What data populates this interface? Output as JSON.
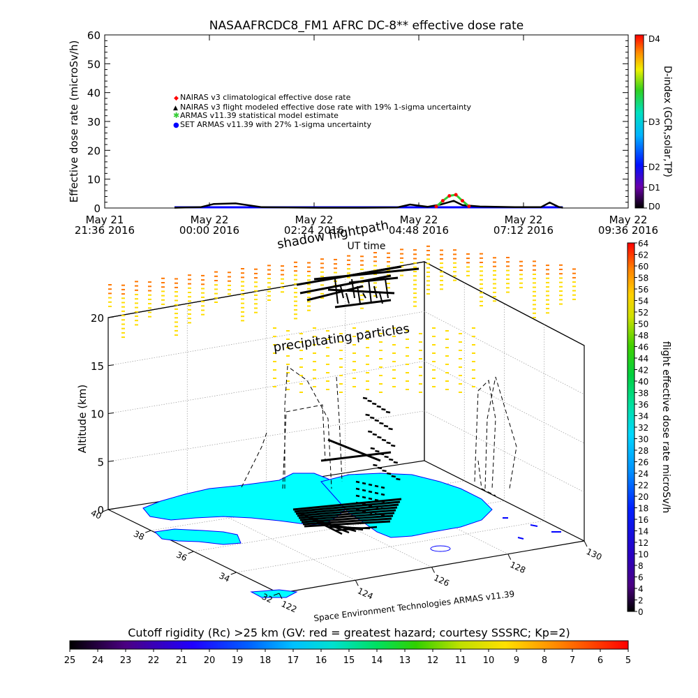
{
  "chart_data": [
    {
      "type": "line",
      "title": "NASAAFRCDC8_FM1 AFRC DC-8** effective dose rate",
      "xlabel": "UT time",
      "ylabel": "Effective dose rate (microSv/h)",
      "ylim": [
        0,
        60
      ],
      "y_ticks": [
        "0",
        "10",
        "20",
        "30",
        "40",
        "50",
        "60"
      ],
      "x_ticks": [
        {
          "line1": "May 21",
          "line2": "21:36 2016"
        },
        {
          "line1": "May 22",
          "line2": "00:00 2016"
        },
        {
          "line1": "May 22",
          "line2": "02:24 2016"
        },
        {
          "line1": "May 22",
          "line2": "04:48 2016"
        },
        {
          "line1": "May 22",
          "line2": "07:12 2016"
        },
        {
          "line1": "May 22",
          "line2": "09:36 2016"
        }
      ],
      "xlim_hours": [
        -2.4,
        9.6
      ],
      "legend": [
        {
          "label": "NAIRAS v3 climatological effective dose rate",
          "color": "#ff0000",
          "marker": "diamond"
        },
        {
          "label": "NAIRAS v3 flight modeled effective dose rate with 19% 1-sigma uncertainty",
          "color": "#000000",
          "marker": "triangle"
        },
        {
          "label": "ARMAS v11.39 statistical model estimate",
          "color": "#33cc33",
          "marker": "star"
        },
        {
          "label": "SET ARMAS v11.39 with 27% 1-sigma uncertainty",
          "color": "#0000ff",
          "marker": "circle"
        }
      ],
      "series": [
        {
          "name": "NAIRAS v3 flight modeled effective dose rate with 19% 1-sigma uncertainty",
          "x_hours": [
            -0.8,
            -0.2,
            0.1,
            0.6,
            1.2,
            1.8,
            2.5,
            3.5,
            4.3,
            4.6,
            5.0,
            5.3,
            5.6,
            5.8,
            6.2,
            7.0,
            7.6,
            7.8,
            8.0,
            8.1
          ],
          "values": [
            0.1,
            0.3,
            1.4,
            1.6,
            0.3,
            0.2,
            0.1,
            0.1,
            0.2,
            1.2,
            0.4,
            1.2,
            2.5,
            1.0,
            0.5,
            0.3,
            0.3,
            1.9,
            0.4,
            0.1
          ]
        },
        {
          "name": "ARMAS v11.39 statistical model estimate",
          "x_hours": [
            5.2,
            5.35,
            5.5,
            5.65,
            5.8,
            5.95
          ],
          "values": [
            0.5,
            2.5,
            4.2,
            4.6,
            2.5,
            0.6
          ]
        },
        {
          "name": "SET ARMAS v11.39 with 27% 1-sigma uncertainty",
          "x_hours": [
            -0.8,
            1.0,
            3.0,
            5.0,
            7.0,
            8.1
          ],
          "values": [
            0,
            0,
            0,
            0,
            0,
            0
          ]
        }
      ],
      "right_axis": {
        "label": "D-index (GCR,solar,TP)",
        "ticks": [
          "D0",
          "D1",
          "D2",
          "D3",
          "D4"
        ]
      }
    },
    {
      "type": "scatter",
      "variant": "3d",
      "title": "shadow flightpath",
      "annotation": "precipitating particles",
      "zlabel": "Altitude (km)",
      "z_ticks": [
        "0",
        "5",
        "10",
        "15",
        "20"
      ],
      "zlim": [
        0,
        20
      ],
      "lat_ticks": [
        "32",
        "34",
        "36",
        "38",
        "40"
      ],
      "lon_ticks": [
        "122",
        "124",
        "126",
        "128",
        "130"
      ],
      "footer": "Space Environment Technologies ARMAS v11.39",
      "right_colorbar": {
        "label": "flight effective dose rate microSv/h",
        "ticks": [
          "0",
          "2",
          "4",
          "6",
          "8",
          "10",
          "12",
          "14",
          "16",
          "18",
          "20",
          "22",
          "24",
          "26",
          "28",
          "30",
          "32",
          "34",
          "36",
          "38",
          "40",
          "42",
          "44",
          "46",
          "48",
          "50",
          "52",
          "54",
          "56",
          "58",
          "60",
          "62",
          "64"
        ]
      },
      "bottom_colorbar": {
        "label": "Cutoff rigidity (Rc) >25 km (GV: red = greatest hazard; courtesy SSSRC; Kp=2)",
        "ticks": [
          "25",
          "24",
          "23",
          "22",
          "21",
          "20",
          "19",
          "18",
          "17",
          "16",
          "15",
          "14",
          "13",
          "12",
          "11",
          "10",
          "9",
          "8",
          "7",
          "6",
          "5"
        ]
      },
      "colors": {
        "land": "#00ffff",
        "coast": "#0000ff",
        "particles_high": "#ff7700",
        "particles_low": "#ffdd00"
      }
    }
  ]
}
